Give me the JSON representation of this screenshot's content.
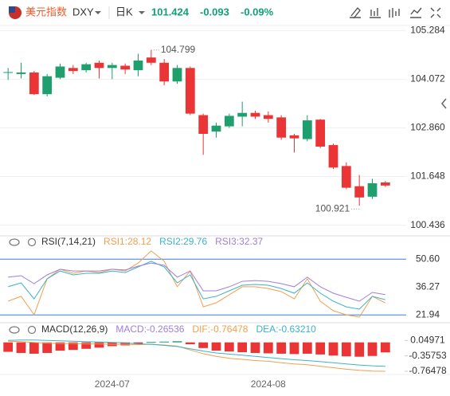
{
  "header": {
    "name": "美元指数",
    "symbol": "DXY",
    "period": "日K",
    "price": "101.424",
    "change": "-0.093",
    "change_pct": "-0.09%"
  },
  "chart_data": [
    {
      "type": "candlestick",
      "categories": [
        null,
        null,
        null,
        null,
        null,
        null,
        null,
        null,
        "2024-07",
        null,
        null,
        null,
        null,
        null,
        null,
        null,
        null,
        null,
        null,
        null,
        "2024-08",
        null,
        null,
        null,
        null,
        null,
        null,
        null,
        null,
        null
      ],
      "open": [
        104.24,
        104.202,
        104.24,
        103.699,
        104.109,
        104.352,
        104.296,
        104.482,
        104.352,
        104.408,
        104.296,
        104.613,
        104.482,
        104.016,
        104.352,
        103.177,
        102.767,
        102.898,
        103.14,
        103.233,
        103.177,
        103.121,
        102.674,
        102.581,
        103.065,
        102.432,
        101.91,
        101.407,
        101.146,
        101.5
      ],
      "high": [
        104.352,
        104.482,
        104.277,
        104.202,
        104.463,
        104.426,
        104.482,
        104.538,
        104.482,
        104.463,
        104.706,
        104.799,
        104.575,
        104.426,
        104.389,
        103.215,
        102.991,
        103.215,
        103.513,
        103.289,
        103.27,
        103.177,
        102.711,
        103.177,
        103.084,
        102.469,
        102.003,
        101.686,
        101.593,
        101.537
      ],
      "low": [
        104.053,
        104.091,
        103.681,
        103.643,
        104.072,
        104.202,
        104.24,
        104.091,
        104.072,
        104.202,
        104.147,
        104.426,
        103.923,
        103.96,
        103.177,
        102.189,
        102.618,
        102.86,
        102.898,
        103.084,
        102.991,
        102.562,
        102.245,
        102.525,
        102.357,
        101.835,
        101.332,
        100.921,
        101.09,
        101.388
      ],
      "close": [
        104.25,
        104.24,
        103.699,
        104.147,
        104.389,
        104.277,
        104.445,
        104.352,
        104.426,
        104.314,
        104.538,
        104.482,
        104.016,
        104.352,
        103.215,
        102.711,
        102.916,
        103.159,
        103.233,
        103.14,
        103.084,
        102.618,
        102.599,
        103.047,
        102.394,
        101.872,
        101.369,
        101.127,
        101.481,
        101.424
      ],
      "up_color": "#1f9e6e",
      "down_color": "#ea3436",
      "ylim": [
        100.25,
        105.45
      ],
      "yticks": [
        105.284,
        104.072,
        {
          "value": 102.86,
          "label": "102.860"
        },
        101.648,
        100.436
      ],
      "annotations": [
        104.799,
        100.921
      ],
      "grid": true
    },
    {
      "type": "line",
      "title": "RSI(7,14,21)",
      "series": [
        {
          "name": "RSI1:28.12",
          "color": "#f0a04b",
          "values": [
            29.0,
            31.5,
            22.0,
            40.5,
            45.4,
            43.3,
            44.5,
            43.7,
            45.4,
            44.5,
            48.6,
            54.8,
            49.5,
            36.4,
            44.5,
            26.1,
            28.2,
            32.3,
            36.4,
            36.4,
            35.5,
            33.9,
            30.2,
            40.5,
            29.0,
            24.1,
            22.0,
            20.8,
            31.5,
            28.12
          ]
        },
        {
          "name": "RSI2:29.76",
          "color": "#3bb3c9",
          "values": [
            36.4,
            38.4,
            30.2,
            40.5,
            44.5,
            42.5,
            43.3,
            43.3,
            44.5,
            43.7,
            46.6,
            49.5,
            46.6,
            38.4,
            42.5,
            30.2,
            31.5,
            34.3,
            37.2,
            37.6,
            37.2,
            35.5,
            33.1,
            38.4,
            33.1,
            29.0,
            26.1,
            24.9,
            31.5,
            29.76
          ]
        },
        {
          "name": "RSI3:32.37",
          "color": "#a17fd6",
          "values": [
            41.3,
            42.1,
            38.0,
            42.5,
            45.4,
            44.5,
            44.5,
            44.5,
            45.4,
            45.0,
            47.0,
            48.6,
            47.4,
            41.3,
            44.5,
            34.3,
            34.3,
            36.4,
            39.2,
            39.6,
            39.2,
            38.0,
            36.4,
            41.3,
            36.4,
            33.1,
            31.0,
            29.0,
            33.5,
            32.37
          ]
        }
      ],
      "ylim": [
        20,
        56
      ],
      "yticks": [
        {
          "value": 50.6,
          "label": "50.60"
        },
        36.27,
        21.94
      ],
      "band_color": "#3d7fd8"
    },
    {
      "type": "macd",
      "title": "MACD(12,26,9)",
      "series": [
        {
          "name": "MACD:-0.26536",
          "color": "#a17fd6",
          "style": "bar",
          "values": [
            -0.25,
            -0.28,
            -0.3,
            -0.28,
            -0.22,
            -0.2,
            -0.17,
            -0.14,
            -0.1,
            -0.08,
            -0.04,
            0.01,
            0.02,
            0.03,
            -0.05,
            -0.15,
            -0.22,
            -0.24,
            -0.26,
            -0.28,
            -0.29,
            -0.3,
            -0.31,
            -0.3,
            -0.32,
            -0.35,
            -0.37,
            -0.38,
            -0.36,
            -0.26536
          ]
        },
        {
          "name": "DIF:-0.76478",
          "color": "#f0a04b",
          "style": "line",
          "values": [
            0.03,
            0.02,
            0.0,
            -0.02,
            -0.03,
            -0.03,
            -0.04,
            -0.04,
            -0.05,
            -0.05,
            -0.06,
            -0.05,
            -0.07,
            -0.1,
            -0.2,
            -0.3,
            -0.37,
            -0.42,
            -0.45,
            -0.48,
            -0.5,
            -0.54,
            -0.57,
            -0.59,
            -0.63,
            -0.67,
            -0.71,
            -0.74,
            -0.76,
            -0.76478
          ]
        },
        {
          "name": "DEA:-0.63210",
          "color": "#3bb3c9",
          "style": "line",
          "values": [
            0.05,
            0.06,
            0.06,
            0.05,
            0.04,
            0.03,
            0.02,
            0.01,
            0.0,
            -0.01,
            -0.04,
            -0.05,
            -0.08,
            -0.11,
            -0.17,
            -0.23,
            -0.28,
            -0.31,
            -0.34,
            -0.37,
            -0.4,
            -0.43,
            -0.46,
            -0.48,
            -0.51,
            -0.54,
            -0.57,
            -0.6,
            -0.62,
            -0.6321
          ]
        }
      ],
      "pos_color": "#1f9e6e",
      "neg_color": "#ea3436",
      "ylim": [
        -0.85,
        0.12
      ],
      "yticks": [
        0.04971,
        -0.35753,
        -0.76478
      ]
    }
  ]
}
